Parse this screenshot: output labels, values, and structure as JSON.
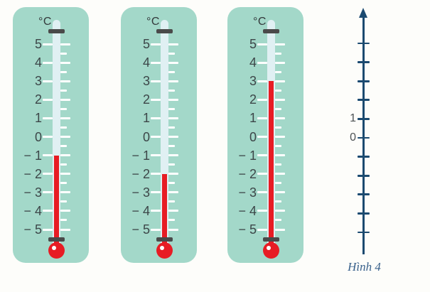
{
  "caption": "Hình 4",
  "unit": "°C",
  "scale": {
    "min": -5,
    "max": 5,
    "major_step": 1,
    "minor_step": 0.5,
    "marks": [
      {
        "value": 5,
        "label": "5"
      },
      {
        "value": 4,
        "label": "4"
      },
      {
        "value": 3,
        "label": "3"
      },
      {
        "value": 2,
        "label": "2"
      },
      {
        "value": 1,
        "label": "1"
      },
      {
        "value": 0,
        "label": "0"
      },
      {
        "value": -1,
        "label": "− 1"
      },
      {
        "value": -2,
        "label": "− 2"
      },
      {
        "value": -3,
        "label": "− 3"
      },
      {
        "value": -4,
        "label": "− 4"
      },
      {
        "value": -5,
        "label": "− 5"
      }
    ]
  },
  "thermometers": [
    {
      "name": "thermometer-1",
      "reading_c": -1
    },
    {
      "name": "thermometer-2",
      "reading_c": -2
    },
    {
      "name": "thermometer-3",
      "reading_c": 3
    }
  ],
  "number_line": {
    "direction": "vertical",
    "arrow": "up",
    "tick_values": [
      5,
      4,
      3,
      2,
      1,
      0,
      -1,
      -2,
      -3,
      -4,
      -5
    ],
    "labels": [
      {
        "value": 1,
        "label": "1"
      },
      {
        "value": 0,
        "label": "0"
      }
    ]
  },
  "colors": {
    "background": "#fdfdfa",
    "thermometer_body": "#a3d8c9",
    "glass_tube": "#e0f0f3",
    "mercury": "#e71c24",
    "tick": "#ffffff",
    "scale_label": "#3c4648",
    "cap_band": "#4a4a4a",
    "axis": "#1b4a70",
    "caption": "#3a628c"
  }
}
